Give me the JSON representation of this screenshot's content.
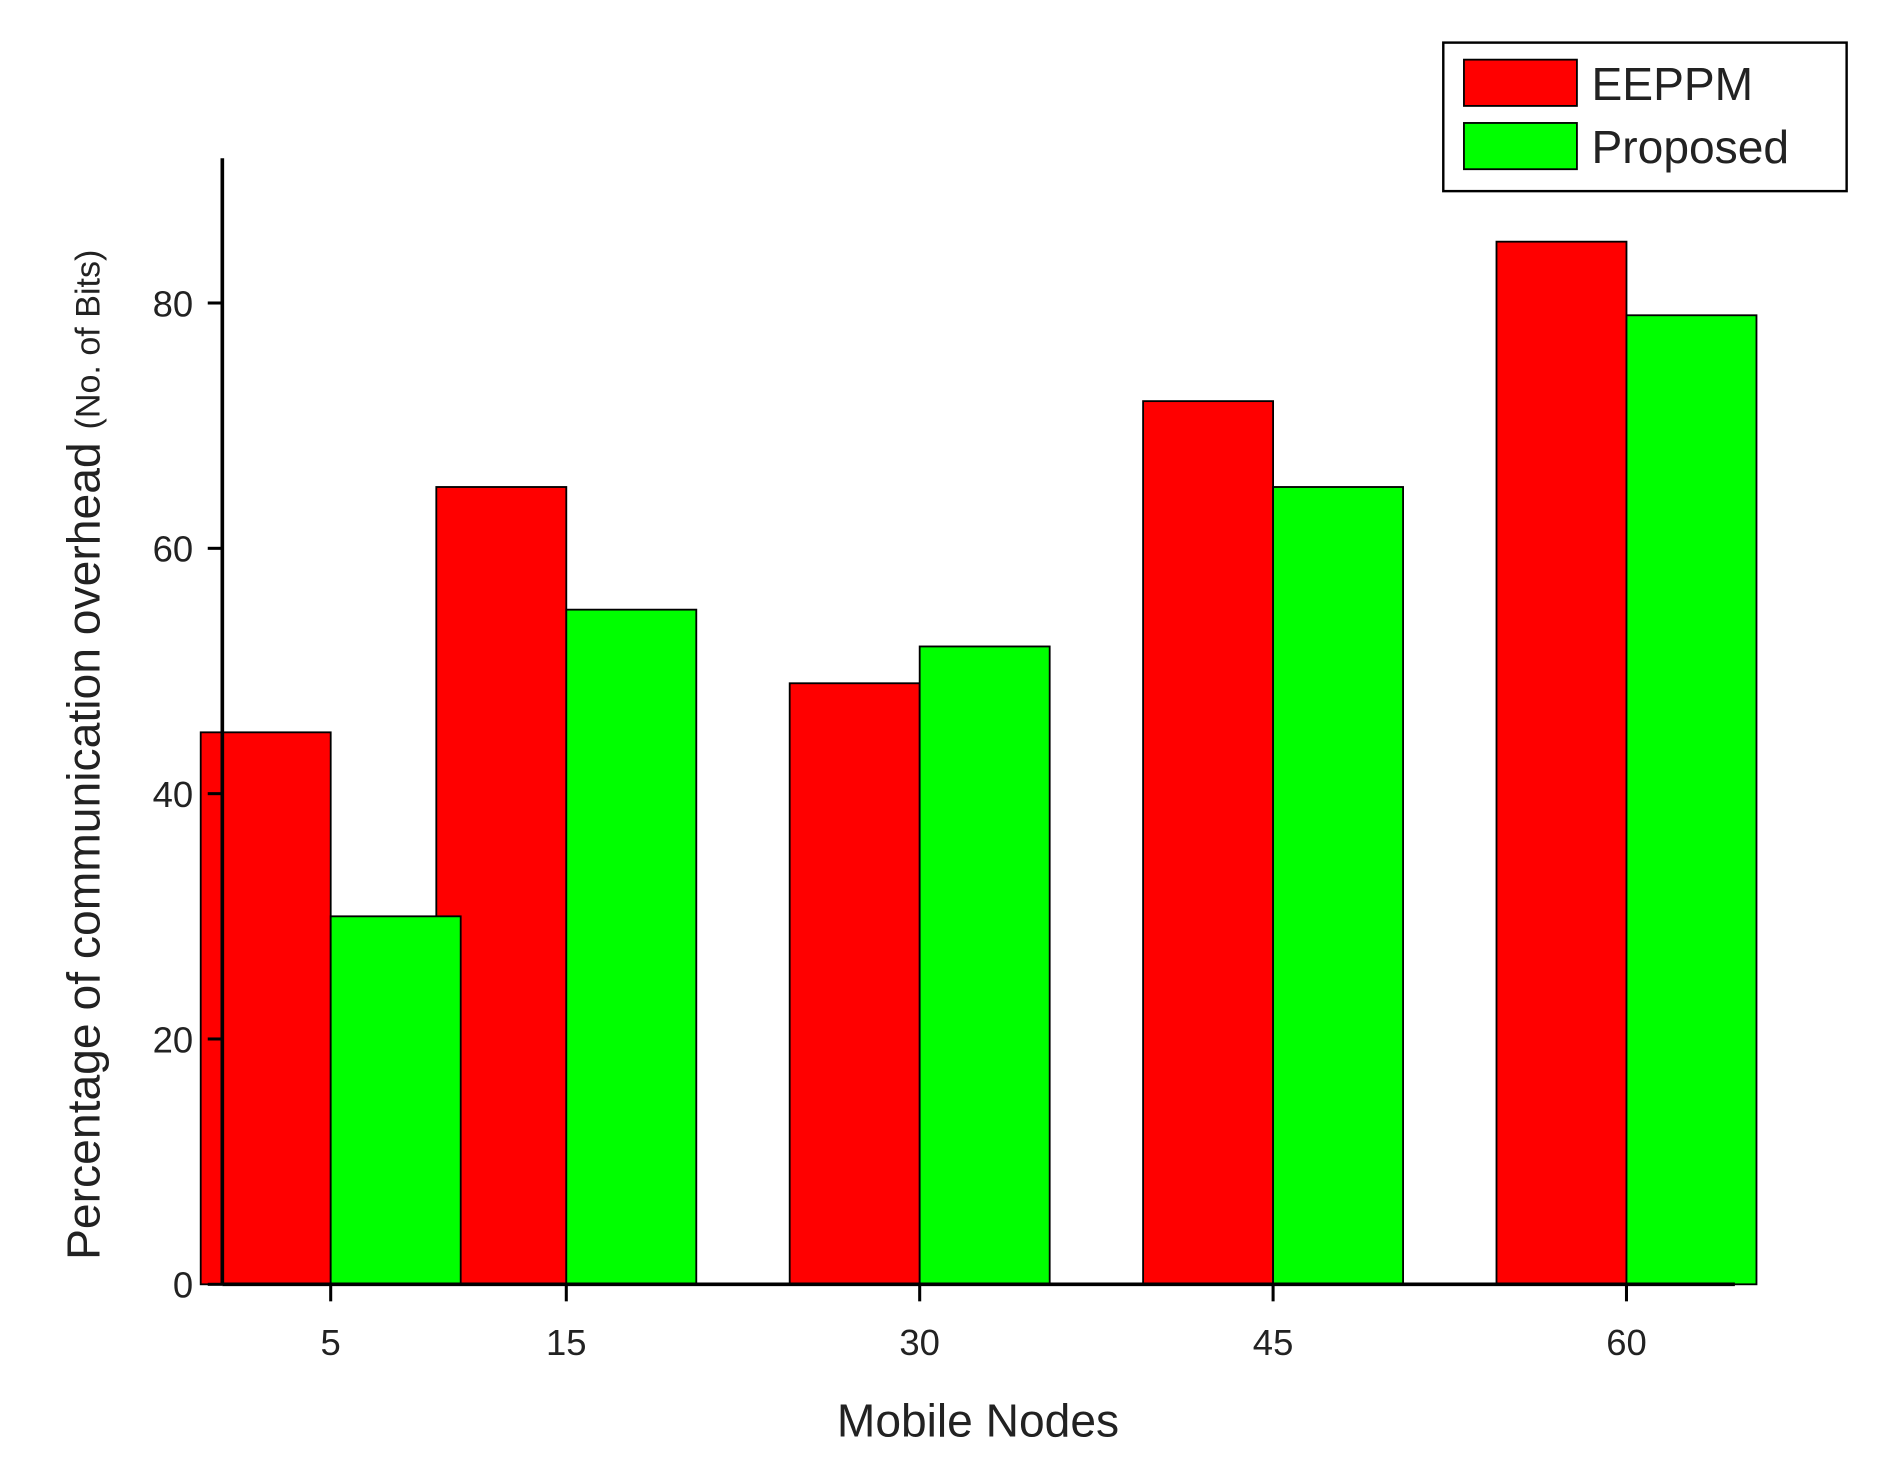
{
  "chart_data": {
    "type": "bar",
    "x_label": "Mobile Nodes",
    "y_label": "Percentage of communication overhead",
    "y_label_unit": "(No. of Bits)",
    "x": [
      5,
      15,
      30,
      45,
      60
    ],
    "series": [
      {
        "name": "EEPPM",
        "color": "#ff0000",
        "values": [
          45,
          65,
          49,
          72,
          85
        ]
      },
      {
        "name": "Proposed",
        "color": "#00ff00",
        "values": [
          30,
          55,
          52,
          65,
          79
        ]
      }
    ],
    "xlim": [
      0.4,
      64.6
    ],
    "xticks": [
      5,
      15,
      30,
      45,
      60
    ],
    "ylim": [
      0,
      91.8
    ],
    "yticks": [
      0,
      20,
      40,
      60,
      80
    ],
    "legend": "top-right"
  }
}
